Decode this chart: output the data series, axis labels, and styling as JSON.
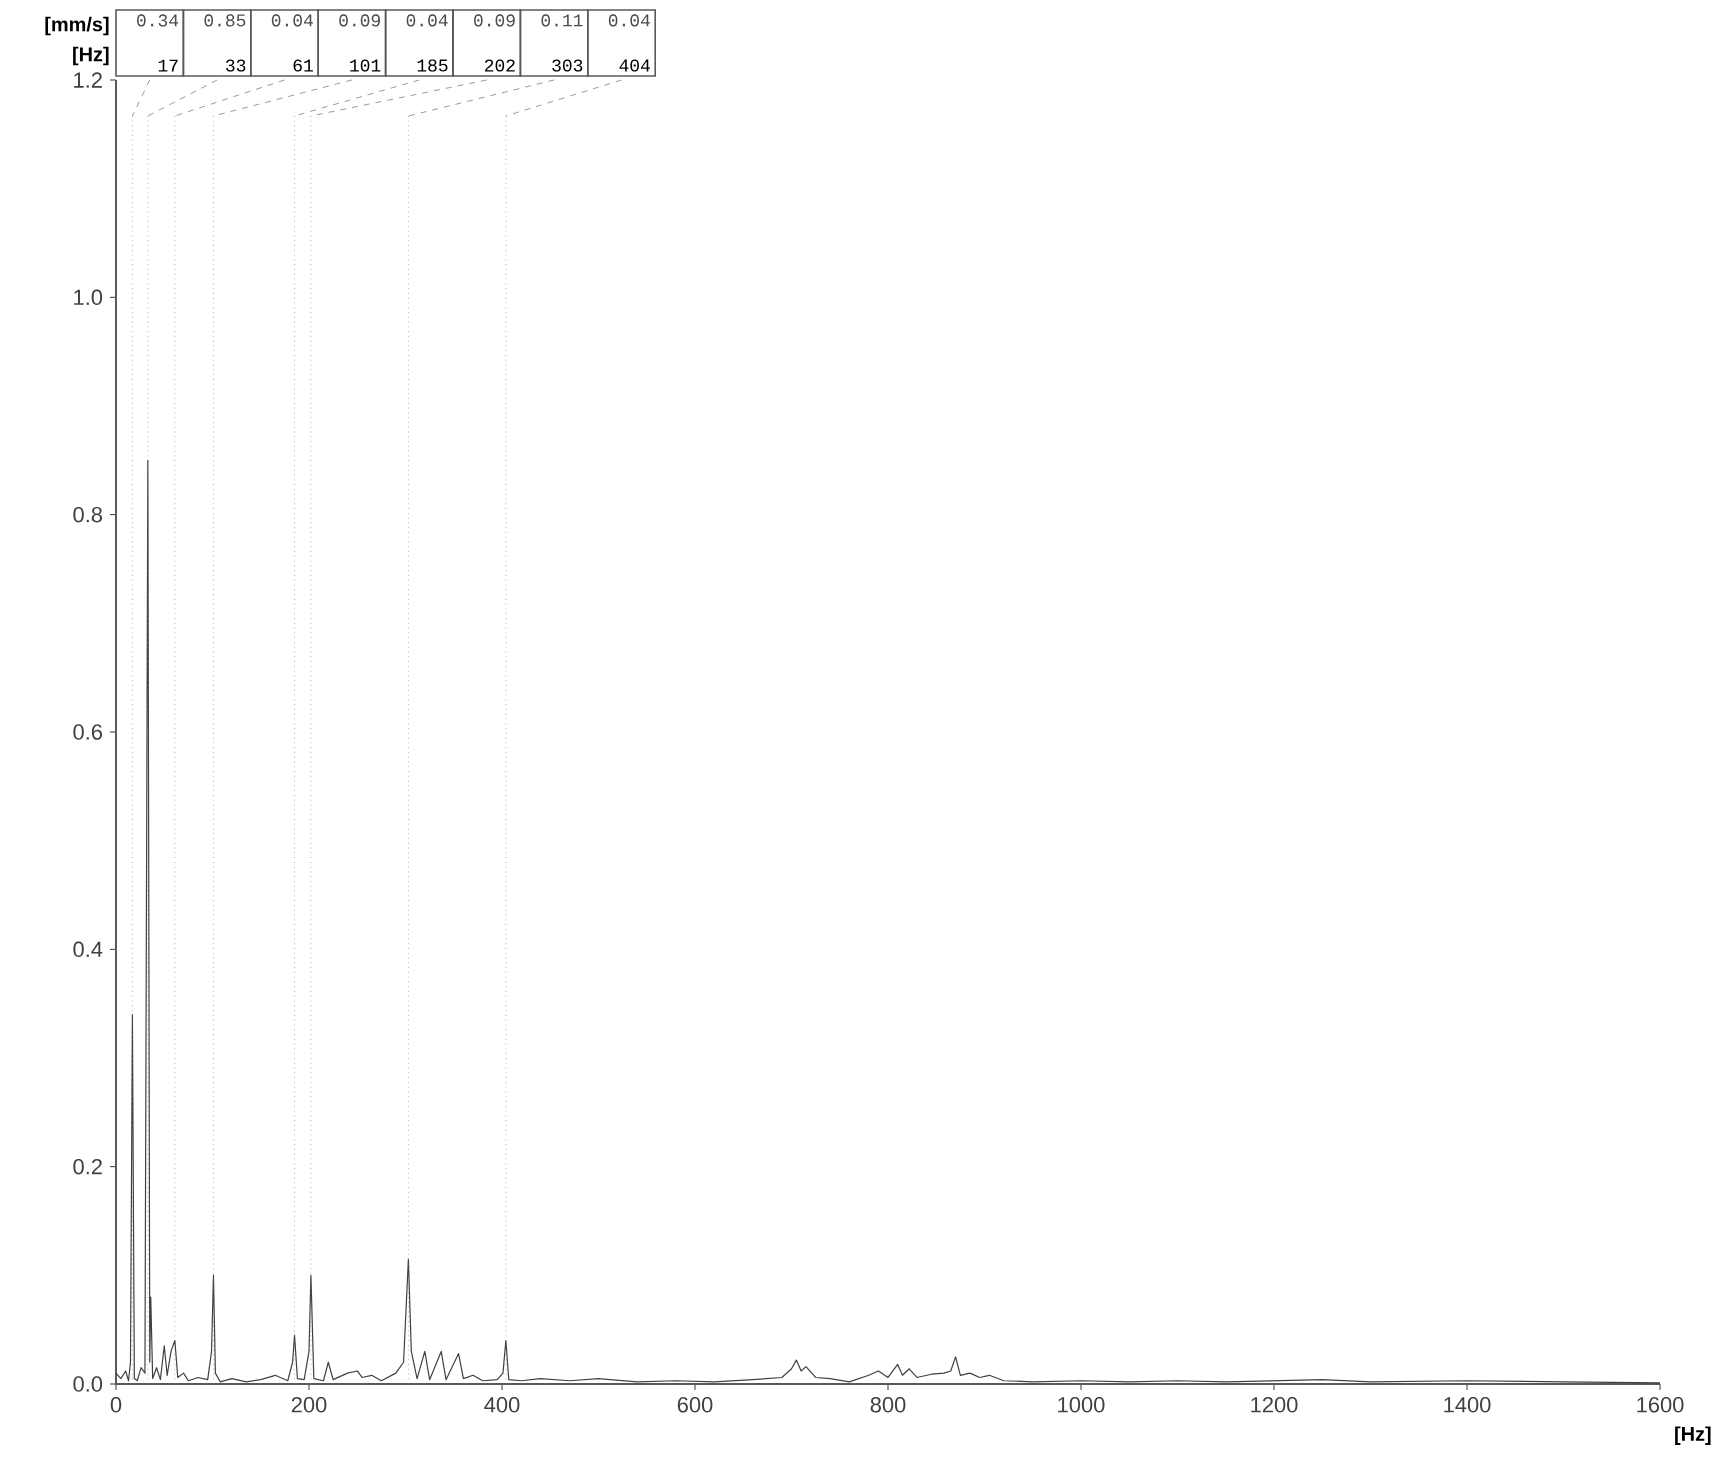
{
  "chart_data": {
    "type": "line",
    "xlabel": "[Hz]",
    "ylabel": "[mm/s]",
    "x": [
      0,
      5,
      10,
      13,
      15,
      17,
      19,
      22,
      26,
      30,
      33,
      35,
      36,
      38,
      42,
      46,
      50,
      53,
      57,
      61,
      64,
      70,
      75,
      85,
      95,
      99,
      101,
      103,
      108,
      120,
      135,
      150,
      165,
      178,
      183,
      185,
      188,
      195,
      200,
      202,
      205,
      215,
      220,
      225,
      240,
      250,
      255,
      265,
      275,
      290,
      298,
      303,
      306,
      312,
      320,
      325,
      337,
      342,
      355,
      360,
      370,
      380,
      395,
      401,
      404,
      407,
      420,
      440,
      470,
      500,
      540,
      580,
      620,
      660,
      690,
      700,
      705,
      710,
      715,
      725,
      740,
      760,
      780,
      790,
      800,
      810,
      815,
      822,
      830,
      845,
      858,
      865,
      870,
      875,
      885,
      895,
      905,
      920,
      950,
      1000,
      1050,
      1100,
      1150,
      1200,
      1250,
      1300,
      1400,
      1500,
      1600
    ],
    "values": [
      0.01,
      0.005,
      0.012,
      0.003,
      0.02,
      0.34,
      0.005,
      0.003,
      0.015,
      0.01,
      0.85,
      0.02,
      0.08,
      0.005,
      0.015,
      0.004,
      0.035,
      0.008,
      0.03,
      0.04,
      0.006,
      0.01,
      0.003,
      0.006,
      0.004,
      0.03,
      0.1,
      0.01,
      0.002,
      0.005,
      0.002,
      0.004,
      0.008,
      0.003,
      0.02,
      0.045,
      0.005,
      0.004,
      0.03,
      0.1,
      0.005,
      0.003,
      0.02,
      0.004,
      0.01,
      0.012,
      0.006,
      0.008,
      0.003,
      0.01,
      0.02,
      0.115,
      0.03,
      0.005,
      0.03,
      0.004,
      0.03,
      0.004,
      0.028,
      0.005,
      0.008,
      0.003,
      0.004,
      0.01,
      0.04,
      0.004,
      0.003,
      0.005,
      0.003,
      0.005,
      0.002,
      0.003,
      0.002,
      0.004,
      0.006,
      0.014,
      0.022,
      0.012,
      0.016,
      0.006,
      0.005,
      0.002,
      0.008,
      0.012,
      0.006,
      0.018,
      0.008,
      0.014,
      0.006,
      0.009,
      0.01,
      0.012,
      0.025,
      0.008,
      0.01,
      0.006,
      0.008,
      0.003,
      0.002,
      0.003,
      0.002,
      0.003,
      0.002,
      0.003,
      0.004,
      0.002,
      0.003,
      0.002,
      0.001
    ],
    "color": "#404040",
    "xlim": [
      0,
      1600
    ],
    "ylim": [
      0,
      1.2
    ],
    "xticks": [
      0,
      200,
      400,
      600,
      800,
      1000,
      1200,
      1400,
      1600
    ],
    "yticks": [
      {
        "value": 0,
        "label": "0.0"
      },
      0.2,
      0.4,
      0.6,
      0.8,
      {
        "value": 1.0,
        "label": "1.0"
      },
      1.2
    ],
    "ref_lines": [
      {
        "axis": "x",
        "value": 17,
        "label": "17",
        "line_style": "dotted"
      },
      {
        "axis": "x",
        "value": 33,
        "label": "33",
        "line_style": "dotted"
      },
      {
        "axis": "x",
        "value": 61,
        "label": "61",
        "line_style": "dotted"
      },
      {
        "axis": "x",
        "value": 101,
        "label": "101",
        "line_style": "dotted"
      },
      {
        "axis": "x",
        "value": 185,
        "label": "185",
        "line_style": "dotted"
      },
      {
        "axis": "x",
        "value": 202,
        "label": "202",
        "line_style": "dotted"
      },
      {
        "axis": "x",
        "value": 303,
        "label": "303",
        "line_style": "dotted"
      },
      {
        "axis": "x",
        "value": 404,
        "label": "404",
        "line_style": "dotted"
      }
    ],
    "annotations": [
      "[Hz]",
      "0.34",
      "0.85",
      "0.04",
      "0.09",
      "0.04",
      "0.09",
      "0.11",
      "0.04"
    ]
  }
}
